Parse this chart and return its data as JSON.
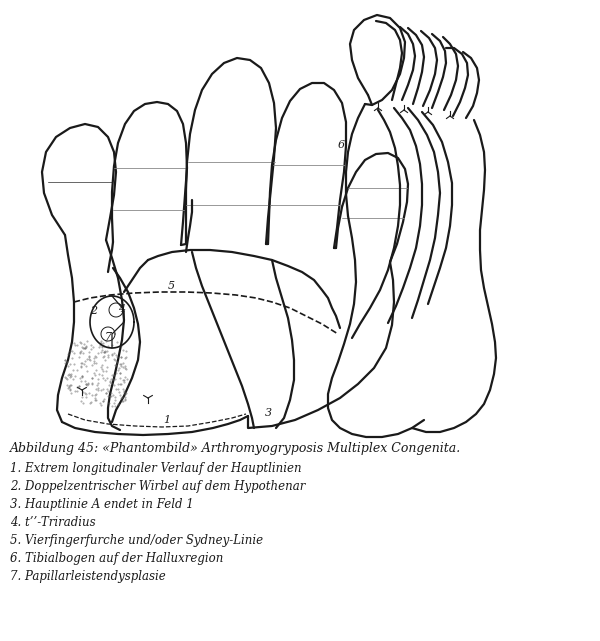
{
  "bg_color": "#ffffff",
  "line_color": "#1a1a1a",
  "caption_title": "Abbildung 45: «Phantombild» Arthromyogryposis Multiplex Congenita.",
  "caption_lines": [
    "1. Extrem longitudinaler Verlauf der Hauptlinien",
    "2. Doppelzentrischer Wirbel auf dem Hypothenar",
    "3. Hauptlinie A endet in Feld 1",
    "4. t’’-Triradius",
    "5. Vierfingerfurche und/oder Sydney-Linie",
    "6. Tibialbogen auf der Halluxregion",
    "7. Papillarleistendysplasie"
  ],
  "font_size_caption": 9.0,
  "font_size_labels": 8.5
}
